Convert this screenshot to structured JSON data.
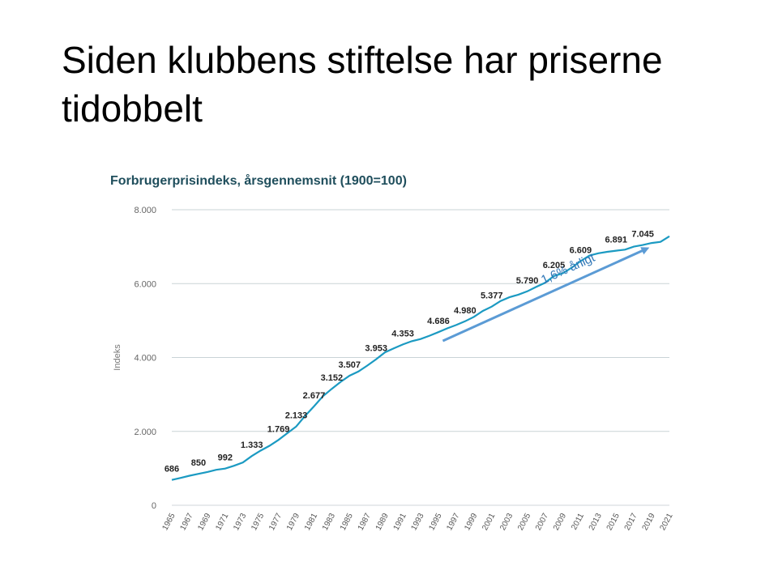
{
  "slide": {
    "title": "Siden klubbens stiftelse har priserne tidobbelt"
  },
  "chart_data": {
    "type": "line",
    "title": "Forbrugerprisindeks, årsgennemsnit (1900=100)",
    "ylabel": "Indeks",
    "xlabel": "",
    "ylim": [
      0,
      8000
    ],
    "yticks": [
      0,
      2000,
      4000,
      6000,
      8000
    ],
    "ytick_labels": [
      "0",
      "2.000",
      "4.000",
      "6.000",
      "8.000"
    ],
    "xlim": [
      1965,
      2021
    ],
    "xticks": [
      1965,
      1967,
      1969,
      1971,
      1973,
      1975,
      1977,
      1979,
      1981,
      1983,
      1985,
      1987,
      1989,
      1991,
      1993,
      1995,
      1997,
      1999,
      2001,
      2003,
      2005,
      2007,
      2009,
      2011,
      2013,
      2015,
      2017,
      2019,
      2021
    ],
    "grid": true,
    "line_color": "#1b9ac2",
    "series": [
      {
        "x": [
          1965,
          1966,
          1967,
          1968,
          1969,
          1970,
          1971,
          1972,
          1973,
          1974,
          1975,
          1976,
          1977,
          1978,
          1979,
          1980,
          1981,
          1982,
          1983,
          1984,
          1985,
          1986,
          1987,
          1988,
          1989,
          1990,
          1991,
          1992,
          1993,
          1994,
          1995,
          1996,
          1997,
          1998,
          1999,
          2000,
          2001,
          2002,
          2003,
          2004,
          2005,
          2006,
          2007,
          2008,
          2009,
          2010,
          2011,
          2012,
          2013,
          2014,
          2015,
          2016,
          2017,
          2018,
          2019,
          2020,
          2021
        ],
        "values": [
          686,
          740,
          800,
          850,
          900,
          960,
          992,
          1070,
          1160,
          1333,
          1480,
          1610,
          1769,
          1950,
          2133,
          2420,
          2677,
          2950,
          3152,
          3340,
          3507,
          3620,
          3780,
          3953,
          4140,
          4250,
          4353,
          4440,
          4500,
          4590,
          4686,
          4790,
          4880,
          4980,
          5100,
          5260,
          5377,
          5530,
          5630,
          5700,
          5790,
          5910,
          6020,
          6205,
          6280,
          6430,
          6609,
          6760,
          6820,
          6860,
          6891,
          6920,
          7000,
          7045,
          7100,
          7130,
          7280
        ]
      }
    ],
    "data_labels": [
      {
        "x": 1965,
        "value": 686,
        "text": "686"
      },
      {
        "x": 1968,
        "value": 850,
        "text": "850"
      },
      {
        "x": 1971,
        "value": 992,
        "text": "992"
      },
      {
        "x": 1974,
        "value": 1333,
        "text": "1.333"
      },
      {
        "x": 1977,
        "value": 1769,
        "text": "1.769"
      },
      {
        "x": 1979,
        "value": 2133,
        "text": "2.133"
      },
      {
        "x": 1981,
        "value": 2677,
        "text": "2.677"
      },
      {
        "x": 1983,
        "value": 3152,
        "text": "3.152"
      },
      {
        "x": 1985,
        "value": 3507,
        "text": "3.507"
      },
      {
        "x": 1988,
        "value": 3953,
        "text": "3.953"
      },
      {
        "x": 1991,
        "value": 4353,
        "text": "4.353"
      },
      {
        "x": 1995,
        "value": 4686,
        "text": "4.686"
      },
      {
        "x": 1998,
        "value": 4980,
        "text": "4.980"
      },
      {
        "x": 2001,
        "value": 5377,
        "text": "5.377"
      },
      {
        "x": 2005,
        "value": 5790,
        "text": "5.790"
      },
      {
        "x": 2008,
        "value": 6205,
        "text": "6.205"
      },
      {
        "x": 2011,
        "value": 6609,
        "text": "6.609"
      },
      {
        "x": 2015,
        "value": 6891,
        "text": "6.891"
      },
      {
        "x": 2018,
        "value": 7045,
        "text": "7.045"
      }
    ],
    "annotation": {
      "text": "1,6% årligt",
      "color": "#5b9bd5",
      "arrow_from": {
        "x": 1995.5,
        "value": 4450
      },
      "arrow_to": {
        "x": 2018.5,
        "value": 6950
      }
    }
  }
}
